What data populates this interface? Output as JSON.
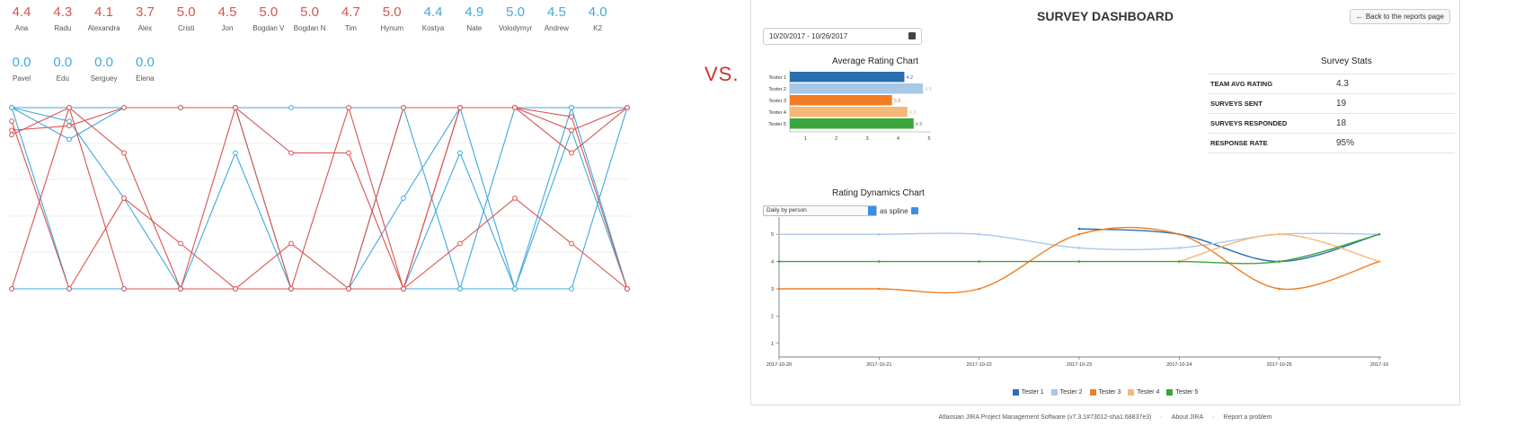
{
  "left": {
    "scores_row1": [
      {
        "value": "4.4",
        "name": "Ana",
        "color": "red"
      },
      {
        "value": "4.3",
        "name": "Radu",
        "color": "red"
      },
      {
        "value": "4.1",
        "name": "Alexandra",
        "color": "red"
      },
      {
        "value": "3.7",
        "name": "Alex",
        "color": "red"
      },
      {
        "value": "5.0",
        "name": "Cristi",
        "color": "red"
      },
      {
        "value": "4.5",
        "name": "Jon",
        "color": "red"
      },
      {
        "value": "5.0",
        "name": "Bogdan V",
        "color": "red"
      },
      {
        "value": "5.0",
        "name": "Bogdan N",
        "color": "red"
      },
      {
        "value": "4.7",
        "name": "Tim",
        "color": "red"
      },
      {
        "value": "5.0",
        "name": "Hynum",
        "color": "red"
      },
      {
        "value": "4.4",
        "name": "Kostya",
        "color": "blue"
      },
      {
        "value": "4.9",
        "name": "Nate",
        "color": "blue"
      },
      {
        "value": "5.0",
        "name": "Volodymyr",
        "color": "blue"
      },
      {
        "value": "4.5",
        "name": "Andrew",
        "color": "blue"
      },
      {
        "value": "4.0",
        "name": "K2",
        "color": "blue"
      }
    ],
    "scores_row2": [
      {
        "value": "0.0",
        "name": "Pavel",
        "color": "blue"
      },
      {
        "value": "0.0",
        "name": "Edu",
        "color": "blue"
      },
      {
        "value": "0.0",
        "name": "Serguey",
        "color": "blue"
      },
      {
        "value": "0.0",
        "name": "Elena",
        "color": "blue"
      }
    ],
    "vs_label": "VS.",
    "colors": {
      "red": "#d9534f",
      "blue": "#3fa9dd"
    }
  },
  "dashboard": {
    "title": "SURVEY DASHBOARD",
    "back_button": "Back to the reports page",
    "date_range": "10/20/2017 - 10/26/2017",
    "avg_chart_title": "Average Rating Chart",
    "stats_title": "Survey Stats",
    "stats": [
      {
        "label": "TEAM AVG RATING",
        "value": "4.3"
      },
      {
        "label": "SURVEYS SENT",
        "value": "19"
      },
      {
        "label": "SURVEYS RESPONDED",
        "value": "18"
      },
      {
        "label": "RESPONSE RATE",
        "value": "95%"
      }
    ],
    "dynamics_title": "Rating Dynamics Chart",
    "select_value": "Daily by person",
    "spline_label": "as spline",
    "footer": [
      "Atlassian JIRA Project Management Software (v7.3.1#73012-sha1:68837e3)",
      "·",
      "About JIRA",
      "·",
      "Report a problem"
    ]
  },
  "chart_data": [
    {
      "type": "bar",
      "title": "Average Rating Chart",
      "categories": [
        "Tester 1",
        "Tester 2",
        "Tester 3",
        "Tester 4",
        "Tester 5"
      ],
      "values": [
        4.2,
        4.8,
        3.8,
        4.3,
        4.5
      ],
      "value_labels": [
        "4.2",
        "4.8",
        "3.8",
        "4.3",
        "4.5"
      ],
      "colors": [
        "#2a6fb0",
        "#a9c8e8",
        "#f07d22",
        "#f5b878",
        "#3aa53a"
      ],
      "x_ticks": [
        "1",
        "2",
        "3",
        "4",
        "5"
      ],
      "xlim": [
        0.5,
        5
      ],
      "orientation": "horizontal"
    },
    {
      "type": "line",
      "title": "Rating Dynamics Chart",
      "x": [
        "2017-10-20",
        "2017-10-21",
        "2017-10-22",
        "2017-10-23",
        "2017-10-24",
        "2017-10-25",
        "2017-10"
      ],
      "y_ticks": [
        "1",
        "2",
        "3",
        "4",
        "5"
      ],
      "ylim": [
        0.5,
        5.5
      ],
      "legend_position": "bottom",
      "series": [
        {
          "name": "Tester 1",
          "color": "#2a6fb0",
          "values": [
            null,
            null,
            null,
            5.2,
            5.0,
            4.0,
            5.0
          ]
        },
        {
          "name": "Tester 2",
          "color": "#a9c8e8",
          "values": [
            5.0,
            5.0,
            5.0,
            4.5,
            4.5,
            5.0,
            5.0
          ]
        },
        {
          "name": "Tester 3",
          "color": "#f07d22",
          "values": [
            3.0,
            3.0,
            3.0,
            5.0,
            5.0,
            3.0,
            4.0
          ]
        },
        {
          "name": "Tester 4",
          "color": "#f5b878",
          "values": [
            null,
            null,
            null,
            null,
            4.0,
            5.0,
            4.0
          ]
        },
        {
          "name": "Tester 5",
          "color": "#3aa53a",
          "values": [
            4.0,
            4.0,
            4.0,
            4.0,
            4.0,
            4.0,
            5.0
          ]
        }
      ]
    }
  ]
}
